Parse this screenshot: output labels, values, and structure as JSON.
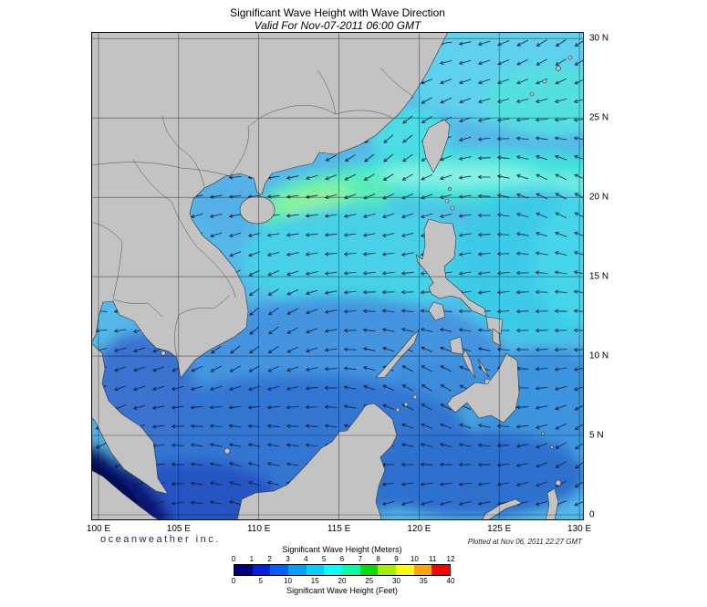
{
  "header": {
    "title": "Significant Wave Height with Wave Direction",
    "subtitle": "Valid For Nov-07-2011 06:00 GMT"
  },
  "map": {
    "x_ticks": [
      "100 E",
      "105 E",
      "110 E",
      "115 E",
      "120 E",
      "125 E",
      "130 E"
    ],
    "y_ticks": [
      "30 N",
      "25 N",
      "20 N",
      "15 N",
      "10 N",
      "5 N",
      "0"
    ],
    "arrow_color": "#101c3a",
    "land_color": "#c3c3c3"
  },
  "legend": {
    "meters_title": "Significant Wave Height (Meters)",
    "feet_title": "Significant Wave Height (Feet)",
    "meters_ticks": [
      "0",
      "1",
      "2",
      "3",
      "4",
      "5",
      "6",
      "7",
      "8",
      "9",
      "10",
      "11",
      "12"
    ],
    "feet_ticks": [
      "0",
      "5",
      "10",
      "15",
      "20",
      "25",
      "30",
      "35",
      "40"
    ],
    "colors": [
      "#000080",
      "#0020e0",
      "#0060ff",
      "#00a0ff",
      "#00d0ff",
      "#00ffff",
      "#00ffa0",
      "#00e000",
      "#a0f000",
      "#ffff00",
      "#ffa500",
      "#ff0000"
    ]
  },
  "footer": {
    "branding": "oceanweather inc.",
    "plotted_note": "Plotted at Nov 06, 2011 22:27 GMT"
  }
}
